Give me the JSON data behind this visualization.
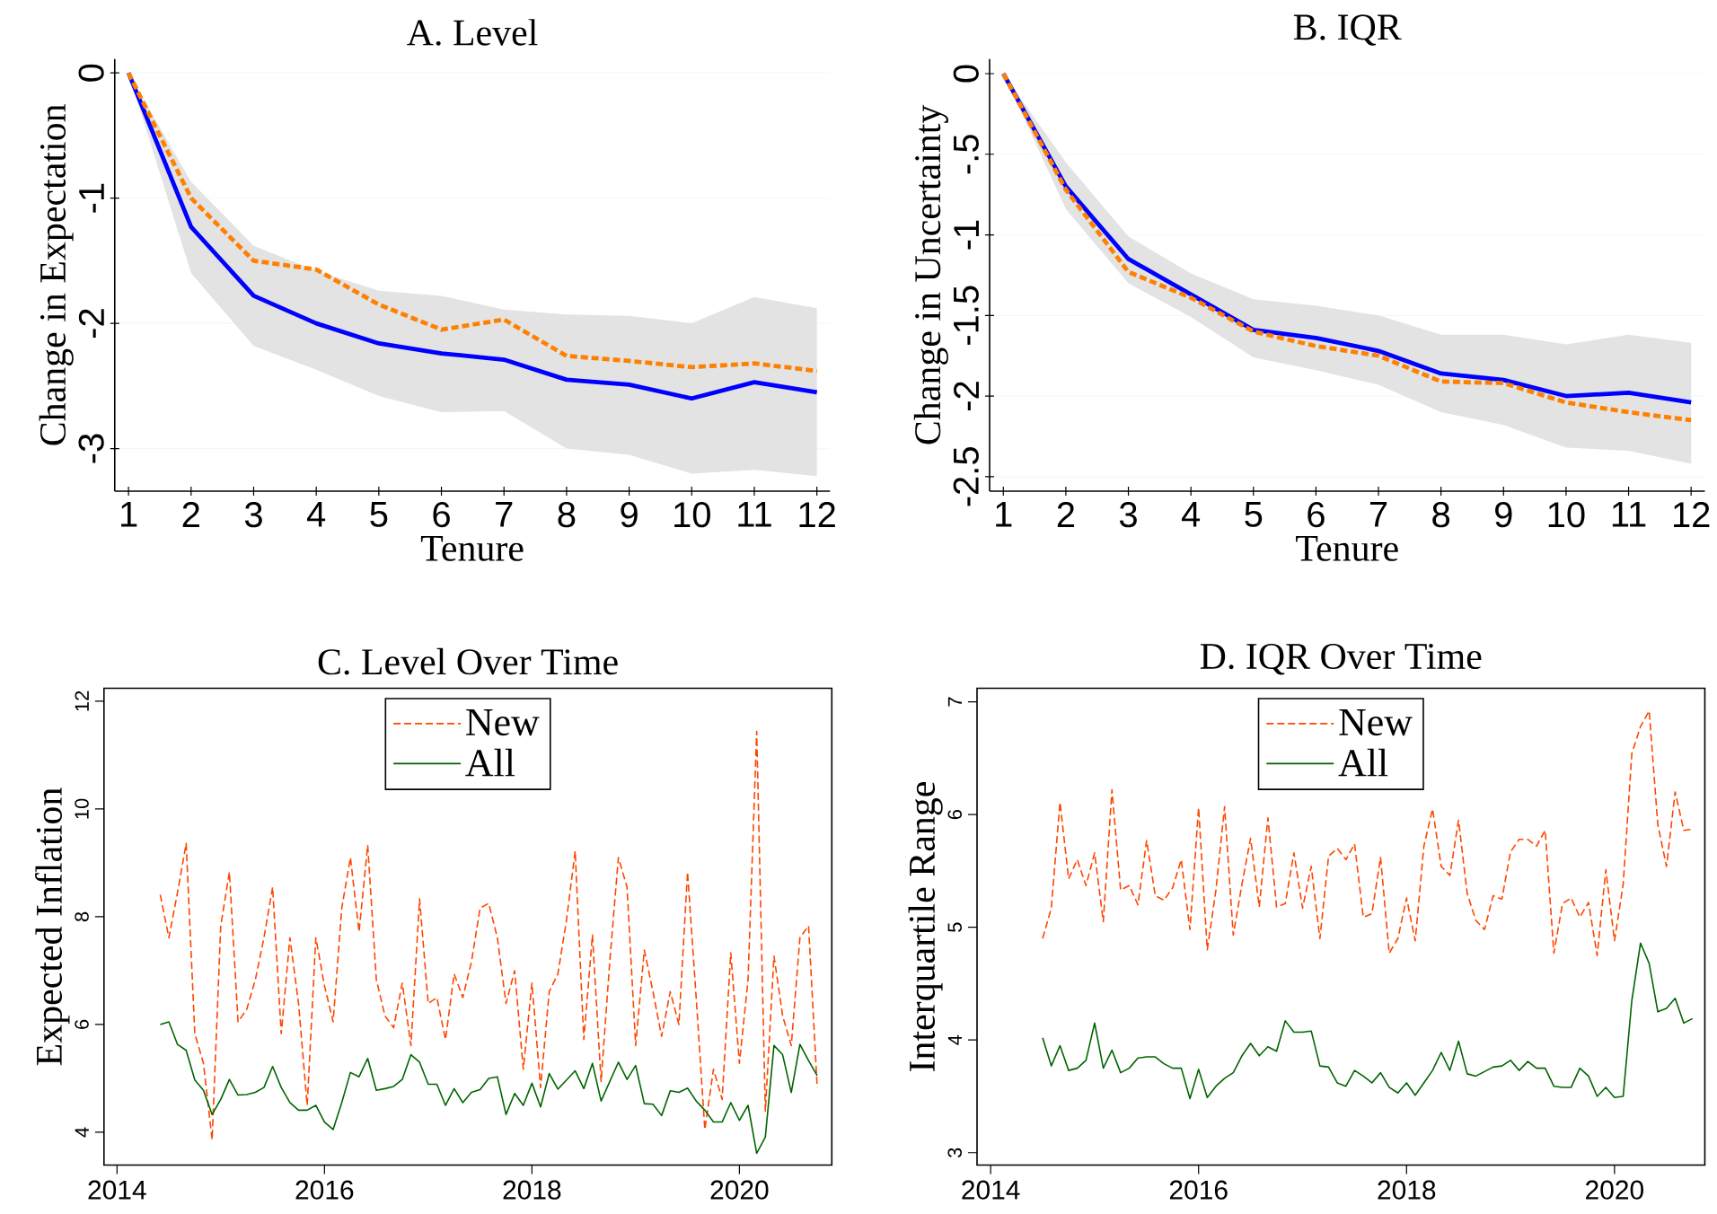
{
  "chart_data": [
    {
      "type": "line",
      "title": "A. Level",
      "xlabel": "Tenure",
      "ylabel": "Change in Expectation",
      "x": [
        1,
        2,
        3,
        4,
        5,
        6,
        7,
        8,
        9,
        10,
        11,
        12
      ],
      "xlim": [
        0.78,
        12.21
      ],
      "ylim": [
        -3.34,
        0.11
      ],
      "xticks": [
        1,
        2,
        3,
        4,
        5,
        6,
        7,
        8,
        9,
        10,
        11,
        12
      ],
      "yticks": [
        -3,
        -2,
        -1,
        0
      ],
      "grid": "y",
      "series": [
        {
          "color": "#0000ff",
          "line_style": "solid",
          "values": [
            0,
            -1.23,
            -1.78,
            -2.0,
            -2.16,
            -2.24,
            -2.29,
            -2.45,
            -2.49,
            -2.6,
            -2.47,
            -2.55
          ],
          "lower": [
            0,
            -1.6,
            -2.18,
            -2.37,
            -2.58,
            -2.71,
            -2.7,
            -3.0,
            -3.05,
            -3.2,
            -3.17,
            -3.22
          ],
          "upper": [
            0,
            -0.87,
            -1.38,
            -1.58,
            -1.74,
            -1.78,
            -1.89,
            -1.93,
            -1.94,
            -2.0,
            -1.79,
            -1.88
          ]
        },
        {
          "color": "#ff8000",
          "line_style": "dashed",
          "values": [
            0,
            -1.0,
            -1.5,
            -1.57,
            -1.85,
            -2.05,
            -1.97,
            -2.26,
            -2.3,
            -2.35,
            -2.32,
            -2.38
          ]
        }
      ]
    },
    {
      "type": "line",
      "title": "B. IQR",
      "xlabel": "Tenure",
      "ylabel": "Change in Uncertainty",
      "x": [
        1,
        2,
        3,
        4,
        5,
        6,
        7,
        8,
        9,
        10,
        11,
        12
      ],
      "xlim": [
        0.78,
        12.22
      ],
      "ylim": [
        -2.59,
        0.09
      ],
      "xticks": [
        1,
        2,
        3,
        4,
        5,
        6,
        7,
        8,
        9,
        10,
        11,
        12
      ],
      "yticks": [
        {
          "value": -2.5,
          "label": "-2.5"
        },
        {
          "value": -2,
          "label": "-2"
        },
        {
          "value": -1.5,
          "label": "-1.5"
        },
        {
          "value": -1,
          "label": "-1"
        },
        {
          "value": -0.5,
          "label": "-.5"
        },
        {
          "value": 0,
          "label": "0"
        }
      ],
      "grid": "y",
      "series": [
        {
          "color": "#0000ff",
          "line_style": "solid",
          "values": [
            0,
            -0.7,
            -1.15,
            -1.37,
            -1.59,
            -1.64,
            -1.72,
            -1.86,
            -1.9,
            -2.0,
            -1.98,
            -2.04
          ],
          "lower": [
            0,
            -0.84,
            -1.3,
            -1.51,
            -1.76,
            -1.84,
            -1.93,
            -2.1,
            -2.18,
            -2.32,
            -2.34,
            -2.42
          ],
          "upper": [
            0,
            -0.55,
            -1.01,
            -1.24,
            -1.4,
            -1.44,
            -1.5,
            -1.62,
            -1.62,
            -1.68,
            -1.62,
            -1.67
          ]
        },
        {
          "color": "#ff8000",
          "line_style": "dashed",
          "values": [
            0,
            -0.72,
            -1.23,
            -1.39,
            -1.6,
            -1.69,
            -1.75,
            -1.91,
            -1.92,
            -2.04,
            -2.1,
            -2.15
          ]
        }
      ]
    },
    {
      "type": "line",
      "title": "C. Level Over Time",
      "ylabel": "Expected Inflation",
      "legend": "top",
      "xlim": [
        "2013-11-16",
        "2020-11-22"
      ],
      "ylim": [
        3.39,
        12.24
      ],
      "xticks": [
        {
          "value": "2014-01-01",
          "label": "2014"
        },
        {
          "value": "2016-01-01",
          "label": "2016"
        },
        {
          "value": "2018-01-01",
          "label": "2018"
        },
        {
          "value": "2020-01-01",
          "label": "2020"
        }
      ],
      "yticks": [
        4,
        6,
        8,
        10,
        12
      ],
      "x": [
        "2014-06",
        "2014-07",
        "2014-08",
        "2014-09",
        "2014-10",
        "2014-11",
        "2014-12",
        "2015-01",
        "2015-02",
        "2015-03",
        "2015-04",
        "2015-05",
        "2015-06",
        "2015-07",
        "2015-08",
        "2015-09",
        "2015-10",
        "2015-11",
        "2015-12",
        "2016-01",
        "2016-02",
        "2016-03",
        "2016-04",
        "2016-05",
        "2016-06",
        "2016-07",
        "2016-08",
        "2016-09",
        "2016-10",
        "2016-11",
        "2016-12",
        "2017-01",
        "2017-02",
        "2017-03",
        "2017-04",
        "2017-05",
        "2017-06",
        "2017-07",
        "2017-08",
        "2017-09",
        "2017-10",
        "2017-11",
        "2017-12",
        "2018-01",
        "2018-02",
        "2018-03",
        "2018-04",
        "2018-05",
        "2018-06",
        "2018-07",
        "2018-08",
        "2018-09",
        "2018-10",
        "2018-11",
        "2018-12",
        "2019-01",
        "2019-02",
        "2019-03",
        "2019-04",
        "2019-05",
        "2019-06",
        "2019-07",
        "2019-08",
        "2019-09",
        "2019-10",
        "2019-11",
        "2019-12",
        "2020-01",
        "2020-02",
        "2020-03",
        "2020-04",
        "2020-05",
        "2020-06",
        "2020-07",
        "2020-08",
        "2020-09",
        "2020-10"
      ],
      "series": [
        {
          "name": "New",
          "color": "#ff4500",
          "line_style": "dashed",
          "values": [
            8.41,
            7.61,
            8.45,
            9.36,
            5.83,
            5.28,
            3.86,
            7.83,
            8.83,
            6.05,
            6.28,
            6.83,
            7.61,
            8.55,
            5.83,
            7.61,
            6.39,
            4.5,
            7.61,
            6.72,
            6.05,
            8.16,
            9.1,
            7.72,
            9.33,
            6.83,
            6.16,
            5.94,
            6.77,
            5.61,
            8.33,
            6.39,
            6.5,
            5.72,
            6.94,
            6.5,
            7.16,
            8.16,
            8.25,
            7.61,
            6.39,
            7.0,
            5.17,
            6.77,
            4.83,
            6.61,
            6.94,
            7.94,
            9.22,
            5.72,
            7.66,
            4.94,
            7.16,
            9.1,
            8.55,
            5.61,
            7.38,
            6.61,
            5.78,
            6.61,
            6.0,
            8.83,
            6.5,
            4.05,
            5.17,
            4.61,
            7.33,
            5.28,
            6.83,
            11.44,
            4.39,
            7.27,
            6.16,
            5.61,
            7.61,
            7.83,
            4.83
          ]
        },
        {
          "name": "All",
          "color": "#006400",
          "line_style": "solid",
          "values": [
            6.0,
            6.05,
            5.63,
            5.52,
            4.97,
            4.78,
            4.33,
            4.61,
            4.98,
            4.69,
            4.7,
            4.74,
            4.83,
            5.22,
            4.83,
            4.55,
            4.41,
            4.41,
            4.5,
            4.19,
            4.05,
            4.55,
            5.11,
            5.03,
            5.37,
            4.78,
            4.81,
            4.85,
            4.98,
            5.44,
            5.3,
            4.89,
            4.89,
            4.5,
            4.81,
            4.55,
            4.74,
            4.79,
            5.0,
            5.03,
            4.33,
            4.72,
            4.5,
            4.91,
            4.47,
            5.09,
            4.8,
            4.97,
            5.14,
            4.81,
            5.28,
            4.58,
            4.94,
            5.3,
            4.98,
            5.24,
            4.53,
            4.52,
            4.31,
            4.77,
            4.74,
            4.82,
            4.58,
            4.41,
            4.19,
            4.19,
            4.55,
            4.22,
            4.5,
            3.61,
            3.91,
            5.61,
            5.44,
            4.74,
            5.63,
            5.33,
            5.05
          ]
        }
      ]
    },
    {
      "type": "line",
      "title": "D. IQR Over Time",
      "ylabel": "Interquartile Range",
      "legend": "top",
      "xlim": [
        "2013-11-14",
        "2020-11-14"
      ],
      "ylim": [
        2.89,
        7.12
      ],
      "xticks": [
        {
          "value": "2014-01-01",
          "label": "2014"
        },
        {
          "value": "2016-01-01",
          "label": "2016"
        },
        {
          "value": "2018-01-01",
          "label": "2018"
        },
        {
          "value": "2020-01-01",
          "label": "2020"
        }
      ],
      "yticks": [
        3,
        4,
        5,
        6,
        7
      ],
      "x": [
        "2014-07",
        "2014-08",
        "2014-09",
        "2014-10",
        "2014-11",
        "2014-12",
        "2015-01",
        "2015-02",
        "2015-03",
        "2015-04",
        "2015-05",
        "2015-06",
        "2015-07",
        "2015-08",
        "2015-09",
        "2015-10",
        "2015-11",
        "2015-12",
        "2016-01",
        "2016-02",
        "2016-03",
        "2016-04",
        "2016-05",
        "2016-06",
        "2016-07",
        "2016-08",
        "2016-09",
        "2016-10",
        "2016-11",
        "2016-12",
        "2017-01",
        "2017-02",
        "2017-03",
        "2017-04",
        "2017-05",
        "2017-06",
        "2017-07",
        "2017-08",
        "2017-09",
        "2017-10",
        "2017-11",
        "2017-12",
        "2018-01",
        "2018-02",
        "2018-03",
        "2018-04",
        "2018-05",
        "2018-06",
        "2018-07",
        "2018-08",
        "2018-09",
        "2018-10",
        "2018-11",
        "2018-12",
        "2019-01",
        "2019-02",
        "2019-03",
        "2019-04",
        "2019-05",
        "2019-06",
        "2019-07",
        "2019-08",
        "2019-09",
        "2019-10",
        "2019-11",
        "2019-12",
        "2020-01",
        "2020-02",
        "2020-03",
        "2020-04",
        "2020-05",
        "2020-06",
        "2020-07",
        "2020-08",
        "2020-09",
        "2020-10"
      ],
      "series": [
        {
          "name": "New",
          "color": "#ff4500",
          "line_style": "dashed",
          "values": [
            4.9,
            5.17,
            6.11,
            5.43,
            5.6,
            5.37,
            5.66,
            5.05,
            6.22,
            5.33,
            5.37,
            5.2,
            5.77,
            5.28,
            5.24,
            5.35,
            5.6,
            4.98,
            6.06,
            4.8,
            5.33,
            6.07,
            4.93,
            5.38,
            5.79,
            5.18,
            5.97,
            5.18,
            5.21,
            5.66,
            5.17,
            5.54,
            4.9,
            5.63,
            5.7,
            5.6,
            5.74,
            5.09,
            5.12,
            5.62,
            4.77,
            4.9,
            5.26,
            4.88,
            5.72,
            6.05,
            5.54,
            5.46,
            5.95,
            5.3,
            5.06,
            4.98,
            5.28,
            5.25,
            5.67,
            5.78,
            5.78,
            5.72,
            5.86,
            4.77,
            5.21,
            5.26,
            5.09,
            5.22,
            4.75,
            5.51,
            4.88,
            5.38,
            6.54,
            6.78,
            6.92,
            5.91,
            5.54,
            6.2,
            5.86,
            5.87
          ]
        },
        {
          "name": "All",
          "color": "#006400",
          "line_style": "solid",
          "values": [
            4.02,
            3.77,
            3.95,
            3.73,
            3.75,
            3.82,
            4.15,
            3.75,
            3.91,
            3.71,
            3.75,
            3.84,
            3.85,
            3.85,
            3.79,
            3.75,
            3.75,
            3.48,
            3.74,
            3.49,
            3.59,
            3.66,
            3.71,
            3.86,
            3.97,
            3.86,
            3.94,
            3.9,
            4.17,
            4.07,
            4.07,
            4.08,
            3.77,
            3.76,
            3.62,
            3.59,
            3.73,
            3.68,
            3.62,
            3.71,
            3.58,
            3.53,
            3.62,
            3.51,
            3.62,
            3.73,
            3.89,
            3.73,
            3.99,
            3.7,
            3.68,
            3.72,
            3.76,
            3.77,
            3.82,
            3.73,
            3.81,
            3.75,
            3.75,
            3.59,
            3.58,
            3.58,
            3.75,
            3.68,
            3.5,
            3.58,
            3.49,
            3.5,
            4.35,
            4.86,
            4.68,
            4.25,
            4.28,
            4.37,
            4.15,
            4.19
          ]
        }
      ]
    }
  ]
}
